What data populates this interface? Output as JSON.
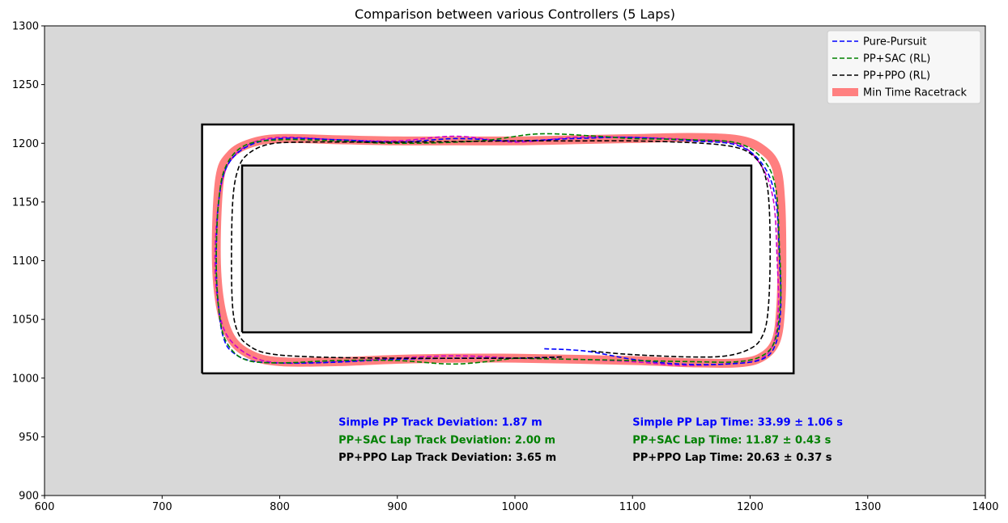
{
  "chart_data": {
    "type": "line",
    "title": "Comparison between various Controllers (5 Laps)",
    "xlabel": "",
    "ylabel": "",
    "xlim": [
      600,
      1400
    ],
    "ylim": [
      900,
      1300
    ],
    "xticks": [
      600,
      700,
      800,
      900,
      1000,
      1100,
      1200,
      1300,
      1400
    ],
    "yticks": [
      900,
      950,
      1000,
      1050,
      1100,
      1150,
      1200,
      1250,
      1300
    ],
    "grid": false,
    "background_color": "#d8d8d8",
    "legend_position": "top-right",
    "track": {
      "outer_boundary": [
        [
          734,
          1004
        ],
        [
          1237,
          1004
        ],
        [
          1237,
          1216
        ],
        [
          734,
          1216
        ],
        [
          734,
          1004
        ]
      ],
      "inner_boundary": [
        [
          768,
          1039
        ],
        [
          1201,
          1039
        ],
        [
          1201,
          1181
        ],
        [
          768,
          1181
        ],
        [
          768,
          1039
        ]
      ],
      "color": "#000000"
    },
    "series": [
      {
        "name": "Pure-Pursuit",
        "color": "#0000ff",
        "style": "dashed",
        "x": [
          1025,
          1060,
          1100,
          1140,
          1180,
          1210,
          1222,
          1226,
          1225,
          1222,
          1212,
          1190,
          1150,
          1100,
          1050,
          1000,
          950,
          900,
          850,
          800,
          772,
          755,
          748,
          746,
          748,
          752,
          760,
          780,
          830,
          900,
          950,
          1000,
          1040
        ],
        "y": [
          1025,
          1023,
          1016,
          1012,
          1012,
          1016,
          1030,
          1060,
          1100,
          1150,
          1180,
          1198,
          1202,
          1205,
          1204,
          1202,
          1204,
          1201,
          1203,
          1204,
          1197,
          1180,
          1150,
          1100,
          1060,
          1035,
          1022,
          1014,
          1013,
          1016,
          1017,
          1017,
          1018
        ]
      },
      {
        "name": "PP+SAC (RL)",
        "color": "#008000",
        "style": "dashed",
        "x": [
          1000,
          1050,
          1100,
          1150,
          1190,
          1212,
          1222,
          1226,
          1225,
          1222,
          1212,
          1190,
          1150,
          1100,
          1070,
          1020,
          970,
          900,
          850,
          800,
          770,
          754,
          748,
          746,
          748,
          754,
          770,
          800,
          850,
          900,
          950,
          1000
        ],
        "y": [
          1017,
          1016,
          1015,
          1014,
          1014,
          1020,
          1035,
          1070,
          1110,
          1160,
          1185,
          1200,
          1203,
          1204,
          1206,
          1208,
          1202,
          1200,
          1202,
          1203,
          1198,
          1180,
          1150,
          1100,
          1060,
          1032,
          1016,
          1013,
          1015,
          1015,
          1012,
          1017
        ]
      },
      {
        "name": "PP+PPO (RL)",
        "color": "#000000",
        "style": "dashed",
        "x": [
          1065,
          1100,
          1150,
          1180,
          1200,
          1210,
          1215,
          1217,
          1216,
          1212,
          1204,
          1190,
          1160,
          1100,
          1050,
          1000,
          900,
          820,
          790,
          772,
          764,
          760,
          759,
          760,
          764,
          772,
          790,
          830,
          900,
          1000,
          1040
        ],
        "y": [
          1023,
          1020,
          1018,
          1019,
          1025,
          1035,
          1055,
          1100,
          1150,
          1175,
          1188,
          1196,
          1200,
          1202,
          1202,
          1202,
          1201,
          1201,
          1199,
          1190,
          1176,
          1150,
          1100,
          1060,
          1040,
          1029,
          1021,
          1018,
          1017,
          1017,
          1018
        ]
      },
      {
        "name": "Min Time Racetrack",
        "color": "#ff0000",
        "opacity": 0.5,
        "style": "thick",
        "x": [
          1000,
          1100,
          1150,
          1190,
          1210,
          1222,
          1226,
          1227,
          1226,
          1222,
          1210,
          1190,
          1150,
          1100,
          1050,
          1000,
          950,
          900,
          850,
          800,
          775,
          758,
          749,
          746,
          749,
          758,
          775,
          800,
          850,
          900,
          950,
          1000
        ],
        "y": [
          1017,
          1015,
          1013,
          1013,
          1018,
          1032,
          1060,
          1100,
          1150,
          1180,
          1195,
          1203,
          1205,
          1204,
          1203,
          1202,
          1202,
          1202,
          1203,
          1204,
          1200,
          1190,
          1170,
          1110,
          1065,
          1035,
          1020,
          1014,
          1014,
          1016,
          1017,
          1017
        ]
      },
      {
        "name": "",
        "color": "#cc00cc",
        "style": "dashed",
        "x": [
          1000,
          1050,
          1100,
          1140,
          1180,
          1208,
          1220,
          1224,
          1223,
          1220,
          1210,
          1190,
          1150,
          1100,
          1050,
          1000,
          950,
          900,
          850,
          800,
          774,
          756,
          748,
          745,
          748,
          756,
          775,
          800,
          850,
          900,
          950,
          1000
        ],
        "y": [
          1017,
          1016,
          1014,
          1011,
          1012,
          1016,
          1030,
          1060,
          1100,
          1150,
          1180,
          1199,
          1203,
          1205,
          1205,
          1201,
          1206,
          1202,
          1203,
          1205,
          1199,
          1182,
          1150,
          1100,
          1060,
          1035,
          1019,
          1013,
          1014,
          1017,
          1019,
          1017
        ]
      }
    ],
    "legend": [
      {
        "label": "Pure-Pursuit",
        "color": "#0000ff",
        "style": "dashed"
      },
      {
        "label": "PP+SAC (RL)",
        "color": "#008000",
        "style": "dashed"
      },
      {
        "label": "PP+PPO (RL)",
        "color": "#000000",
        "style": "dashed"
      },
      {
        "label": "Min Time Racetrack",
        "color": "#ff8080",
        "style": "thick"
      }
    ],
    "annotations": [
      {
        "text": "Simple PP Track Deviation: 1.87 m",
        "color": "#0000ff",
        "x": 850,
        "y": 963
      },
      {
        "text": "PP+SAC Lap Track Deviation: 2.00 m",
        "color": "#008000",
        "x": 850,
        "y": 948
      },
      {
        "text": "PP+PPO Lap Track Deviation: 3.65 m",
        "color": "#000000",
        "x": 850,
        "y": 933
      },
      {
        "text": "Simple PP Lap Time: 33.99 ± 1.06 s",
        "color": "#0000ff",
        "x": 1100,
        "y": 963
      },
      {
        "text": "PP+SAC Lap Time: 11.87 ± 0.43 s",
        "color": "#008000",
        "x": 1100,
        "y": 948
      },
      {
        "text": "PP+PPO Lap Time: 20.63 ± 0.37 s",
        "color": "#000000",
        "x": 1100,
        "y": 933
      }
    ]
  }
}
